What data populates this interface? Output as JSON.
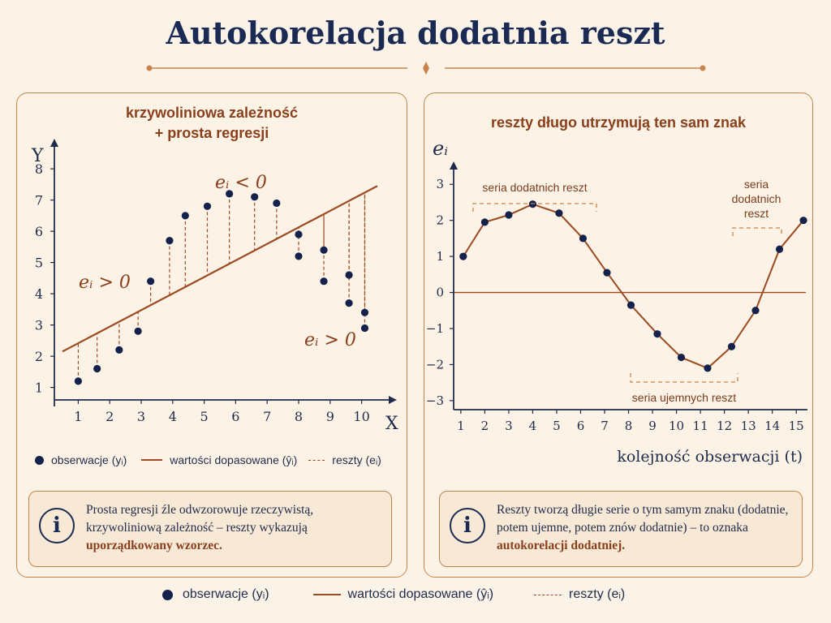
{
  "title": "Autokorelacja dodatnia reszt",
  "colors": {
    "accent": "#9c4a22",
    "dots": "#14214a",
    "axis": "#1f2b4a",
    "panel_border": "#c8834a",
    "info_bg": "#f8e8d6"
  },
  "left_panel": {
    "title_line1": "krzywoliniowa zależność",
    "title_line2": "+ prosta regresji",
    "annotation_neg": "eᵢ < 0",
    "annotation_pos_left": "eᵢ > 0",
    "annotation_pos_right": "eᵢ > 0",
    "legend": {
      "obs": "obserwacje (yᵢ)",
      "fit": "wartości dopasowane (ŷᵢ)",
      "resid": "reszty (eᵢ)"
    },
    "info": {
      "text_before": "Prosta regresji źle odwzorowuje rzeczywistą, krzywoliniową zależność – reszty wykazują",
      "text_em": "uporządkowany wzorzec."
    }
  },
  "right_panel": {
    "title": "reszty długo utrzymują ten sam znak",
    "bracket_pos_left": "seria dodatnich reszt",
    "bracket_pos_right_1": "seria",
    "bracket_pos_right_2": "dodatnich",
    "bracket_pos_right_3": "reszt",
    "bracket_neg": "seria ujemnych reszt",
    "info": {
      "text_before": "Reszty tworzą długie serie o tym samym znaku (dodatnie, potem ujemne, potem znów dodatnie) – to oznaka",
      "text_em": "autokorelacji dodatniej."
    }
  },
  "legend_bottom": {
    "obs": "obserwacje (yᵢ)",
    "fit": "wartości dopasowane (ŷᵢ)",
    "resid": "reszty (eᵢ)"
  },
  "chart_data": [
    {
      "type": "scatter",
      "title": "krzywoliniowa zależność + prosta regresji",
      "xlabel": "X",
      "ylabel": "Y",
      "xlim": [
        0.5,
        10.5
      ],
      "ylim": [
        0.6,
        8.6
      ],
      "xticks": [
        1,
        2,
        3,
        4,
        5,
        6,
        7,
        8,
        9,
        10
      ],
      "yticks": [
        1,
        2,
        3,
        4,
        5,
        6,
        7,
        8
      ],
      "points": [
        {
          "x": 1.0,
          "y": 1.2
        },
        {
          "x": 1.6,
          "y": 1.6
        },
        {
          "x": 2.3,
          "y": 2.2
        },
        {
          "x": 2.9,
          "y": 2.8
        },
        {
          "x": 3.3,
          "y": 4.4
        },
        {
          "x": 3.9,
          "y": 5.7
        },
        {
          "x": 4.4,
          "y": 6.5
        },
        {
          "x": 5.1,
          "y": 6.8
        },
        {
          "x": 5.8,
          "y": 7.2
        },
        {
          "x": 6.6,
          "y": 7.1
        },
        {
          "x": 7.3,
          "y": 6.9
        },
        {
          "x": 8.0,
          "y": 5.9
        },
        {
          "x": 8.0,
          "y": 5.2
        },
        {
          "x": 8.8,
          "y": 5.4
        },
        {
          "x": 8.8,
          "y": 4.4
        },
        {
          "x": 9.6,
          "y": 4.6
        },
        {
          "x": 9.6,
          "y": 3.7
        },
        {
          "x": 10.1,
          "y": 3.4
        },
        {
          "x": 10.1,
          "y": 2.9
        }
      ],
      "fit_line": {
        "x0": 0.5,
        "y0": 2.15,
        "x1": 10.5,
        "y1": 7.45
      }
    },
    {
      "type": "line",
      "title": "reszty długo utrzymują ten sam znak",
      "xlabel": "kolejność obserwacji (t)",
      "ylabel": "eᵢ",
      "xlim": [
        0.7,
        15.4
      ],
      "ylim": [
        -3.25,
        3.5
      ],
      "xticks": [
        1,
        2,
        3,
        4,
        5,
        6,
        7,
        8,
        9,
        10,
        11,
        12,
        13,
        14,
        15
      ],
      "yticks": [
        -3,
        -2,
        -1,
        0,
        1,
        2,
        3
      ],
      "x": [
        1.1,
        2.0,
        3.0,
        4.0,
        5.1,
        6.1,
        7.1,
        8.1,
        9.2,
        10.2,
        11.3,
        12.3,
        13.3,
        14.3,
        15.3
      ],
      "values": [
        1.0,
        1.95,
        2.15,
        2.45,
        2.2,
        1.5,
        0.55,
        -0.35,
        -1.15,
        -1.8,
        -2.1,
        -1.5,
        -0.5,
        1.2,
        2.0
      ]
    }
  ]
}
